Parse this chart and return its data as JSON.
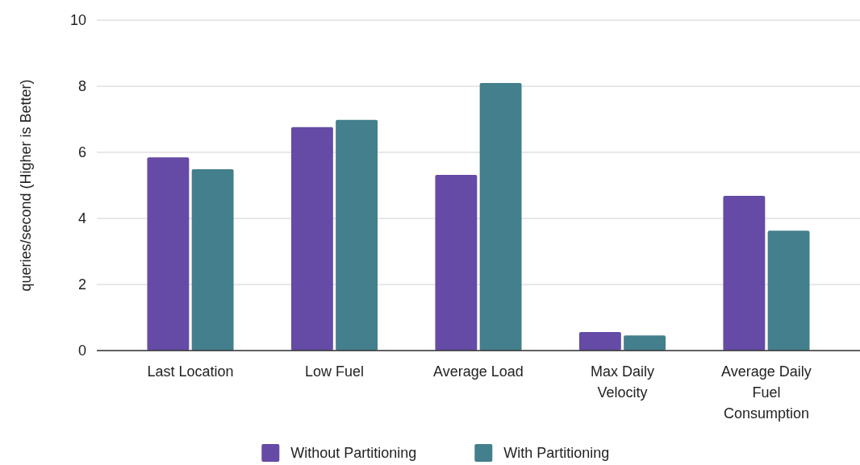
{
  "chart_data": {
    "type": "bar",
    "ylabel": "queries/second (Higher is Better)",
    "categories": [
      "Last Location",
      "Low Fuel",
      "Average Load",
      "Max Daily Velocity",
      "Average Daily Fuel Consumption"
    ],
    "series": [
      {
        "name": "Without Partitioning",
        "color": "#654ba6",
        "values": [
          5.85,
          6.76,
          5.32,
          0.56,
          4.68
        ]
      },
      {
        "name": "With Partitioning",
        "color": "#437f8c",
        "values": [
          5.49,
          6.98,
          8.1,
          0.46,
          3.63
        ]
      }
    ],
    "ylim": [
      0,
      10
    ],
    "yticks": [
      0,
      2,
      4,
      6,
      8,
      10
    ],
    "grid": "y",
    "legend": "bottom"
  }
}
